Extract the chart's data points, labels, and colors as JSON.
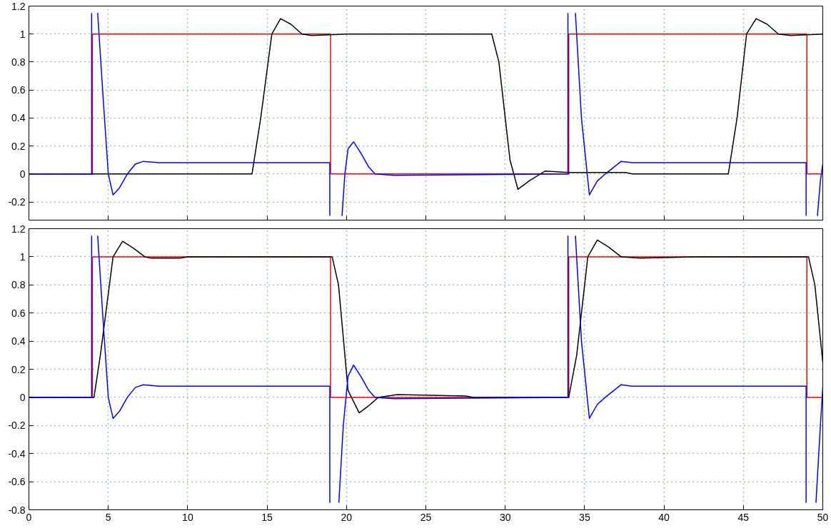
{
  "chart_data": [
    {
      "type": "line",
      "xlim": [
        0,
        50
      ],
      "ylim": [
        -0.33,
        1.2
      ],
      "yticks": [
        -0.2,
        0,
        0.2,
        0.4,
        0.6,
        0.8,
        1,
        1.2
      ],
      "xticks": [
        0,
        5,
        10,
        15,
        20,
        25,
        30,
        35,
        40,
        45,
        50
      ],
      "grid": true,
      "tick_labels": "y",
      "line_style": "solid",
      "series": [
        {
          "color": "#ff0000",
          "x": [
            0,
            4,
            4,
            19,
            19,
            34,
            34,
            49,
            49,
            50
          ],
          "values": [
            0,
            0,
            1,
            1,
            0,
            0,
            1,
            1,
            0,
            0
          ]
        },
        {
          "color": "#000000",
          "x": [
            0,
            14.05,
            14.6,
            15.3,
            15.85,
            16.5,
            17.2,
            17.8,
            20,
            29.15,
            29.6,
            30.3,
            30.8,
            31.5,
            32.5,
            34,
            37.6,
            38,
            44.05,
            44.6,
            45.2,
            45.8,
            46.5,
            47.2,
            48,
            50
          ],
          "values": [
            0,
            0,
            0.4,
            1,
            1.11,
            1.07,
            1,
            0.99,
            1,
            1,
            0.8,
            0.1,
            -0.11,
            -0.05,
            0.02,
            0.01,
            0.01,
            0,
            0,
            0.4,
            1,
            1.11,
            1.07,
            1,
            0.99,
            1
          ]
        },
        {
          "color": "#0000ff",
          "x": [
            0,
            3.95,
            3.95,
            null,
            4.33,
            4.7,
            5,
            5.3,
            5.7,
            6.2,
            6.7,
            7.2,
            8.2,
            18.95,
            18.95,
            null,
            19.72,
            19.9,
            20.1,
            20.45,
            20.9,
            21.4,
            21.8,
            23,
            34,
            33.95,
            33.95,
            null,
            34.42,
            34.8,
            35.3,
            35.8,
            36.3,
            37.3,
            38,
            48.95,
            48.95,
            null,
            49.66,
            49.85,
            50
          ],
          "values": [
            0,
            0,
            1.15,
            null,
            1.15,
            0.5,
            0,
            -0.15,
            -0.1,
            0,
            0.07,
            0.09,
            0.08,
            0.08,
            -0.3,
            null,
            -0.3,
            0,
            0.18,
            0.23,
            0.15,
            0.05,
            0,
            -0.01,
            0,
            0,
            1.15,
            null,
            1.15,
            0.4,
            -0.15,
            -0.05,
            0,
            0.09,
            0.08,
            0.08,
            -0.3,
            null,
            -0.3,
            -0.05,
            0.07
          ]
        }
      ]
    },
    {
      "type": "line",
      "xlim": [
        0,
        50
      ],
      "ylim": [
        -0.8,
        1.2
      ],
      "yticks": [
        -0.8,
        -0.6,
        -0.4,
        -0.2,
        0,
        0.2,
        0.4,
        0.6,
        0.8,
        1,
        1.2
      ],
      "xticks": [
        0,
        5,
        10,
        15,
        20,
        25,
        30,
        35,
        40,
        45,
        50
      ],
      "grid": true,
      "line_style": "solid",
      "series": [
        {
          "color": "#ff0000",
          "x": [
            0,
            4,
            4,
            19,
            19,
            34,
            34,
            49,
            49,
            50
          ],
          "values": [
            0,
            0,
            1,
            1,
            0,
            0,
            1,
            1,
            0,
            0
          ]
        },
        {
          "color": "#000000",
          "x": [
            0,
            4.1,
            4.5,
            5.3,
            5.9,
            6.6,
            7.3,
            7.7,
            9.5,
            10,
            19.1,
            19.5,
            20.1,
            20.8,
            21.4,
            22,
            23.2,
            27.5,
            28,
            34,
            34.5,
            35.2,
            35.8,
            36.5,
            37.3,
            38.5,
            42,
            49.1,
            49.5,
            50
          ],
          "values": [
            0,
            0,
            0.3,
            1,
            1.11,
            1.06,
            1,
            0.99,
            0.99,
            1,
            1,
            0.8,
            0.05,
            -0.11,
            -0.06,
            0,
            0.02,
            0.01,
            0,
            0,
            0.3,
            1,
            1.12,
            1.07,
            1,
            0.99,
            1,
            1,
            0.8,
            0.25
          ]
        },
        {
          "color": "#0000ff",
          "x": [
            0,
            3.95,
            3.95,
            null,
            4.33,
            4.7,
            5,
            5.3,
            5.7,
            6.2,
            6.7,
            7.2,
            8.2,
            18.95,
            18.95,
            null,
            19.52,
            19.8,
            20.1,
            20.45,
            20.9,
            21.4,
            21.8,
            23,
            34,
            33.95,
            33.95,
            null,
            34.42,
            34.8,
            35.3,
            35.8,
            36.3,
            37.3,
            38,
            48.95,
            48.95,
            null,
            49.57,
            49.85,
            50
          ],
          "values": [
            0,
            0,
            1.15,
            null,
            1.15,
            0.5,
            0,
            -0.15,
            -0.1,
            0,
            0.07,
            0.09,
            0.08,
            0.08,
            -0.75,
            null,
            -0.75,
            -0.2,
            0.15,
            0.23,
            0.15,
            0.05,
            0,
            -0.01,
            0,
            0,
            1.15,
            null,
            1.15,
            0.4,
            -0.15,
            -0.05,
            0,
            0.09,
            0.08,
            0.08,
            -0.75,
            null,
            -0.75,
            -0.2,
            0.07
          ]
        }
      ]
    }
  ]
}
